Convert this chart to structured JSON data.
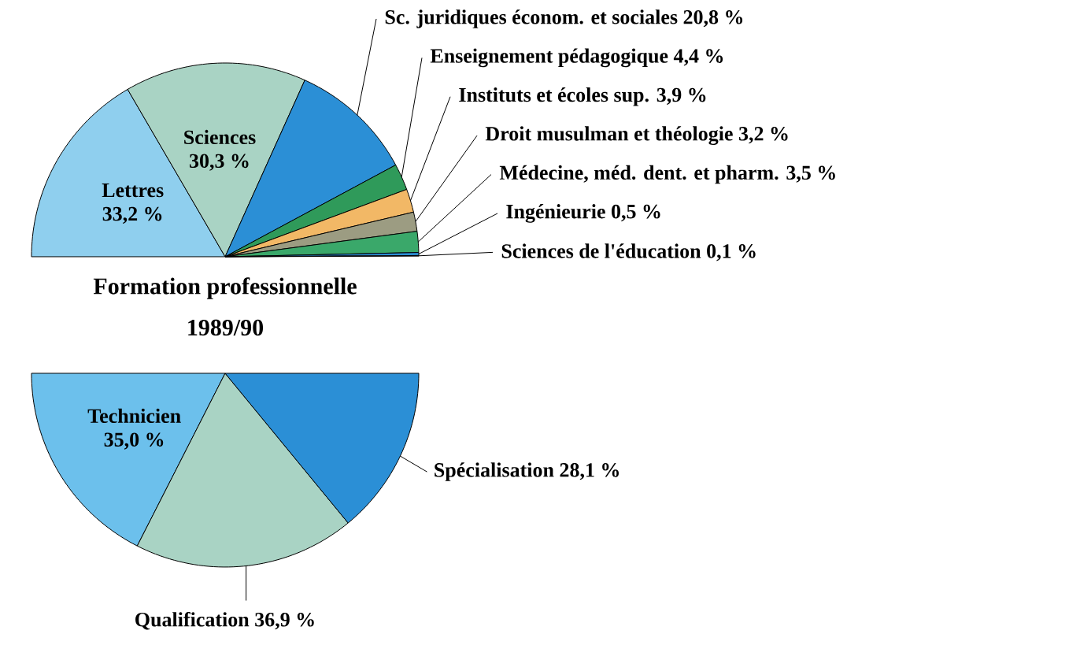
{
  "chart_data": [
    {
      "type": "pie",
      "categories": [
        "Lettres",
        "Sciences",
        "Sc. juridiques économ. et sociales",
        "Enseignement pédagogique",
        "Instituts et écoles sup.",
        "Droit musulman et théologie",
        "Médecine, méd. dent. et pharm.",
        "Ingénieurie",
        "Sciences de l'éducation"
      ],
      "values": [
        33.2,
        30.3,
        20.8,
        4.4,
        3.9,
        3.2,
        3.5,
        0.5,
        0.1
      ],
      "value_labels": [
        "33,2 %",
        "30,3 %",
        "20,8 %",
        "4,4 %",
        "3,9 %",
        "3,2 %",
        "3,5 %",
        "0,5 %",
        "0,1 %"
      ],
      "colors": [
        "#8fcfee",
        "#a9d3c4",
        "#2b8fd6",
        "#2f9a5a",
        "#f2b866",
        "#9c9c82",
        "#3aa86a",
        "#2b8fd6",
        "#ffffff"
      ]
    },
    {
      "type": "pie",
      "title": "Formation professionnelle",
      "subtitle": "1989/90",
      "categories": [
        "Technicien",
        "Qualification",
        "Spécialisation"
      ],
      "values": [
        35.0,
        36.9,
        28.1
      ],
      "value_labels": [
        "35,0 %",
        "36,9 %",
        "28,1 %"
      ],
      "colors": [
        "#6cc0ec",
        "#a9d3c4",
        "#2b8fd6"
      ]
    }
  ]
}
